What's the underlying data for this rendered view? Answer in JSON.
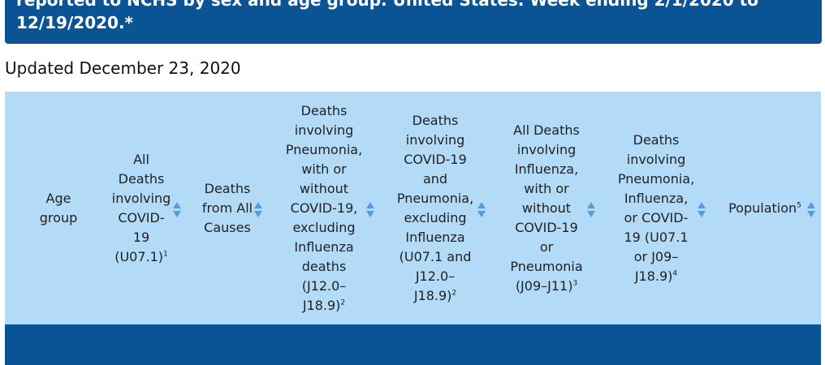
{
  "title": "reported to NCHS by sex and age group. United States. Week ending 2/1/2020 to 12/19/2020.*",
  "updated": "Updated December 23, 2020",
  "columns": [
    {
      "label": "Age group",
      "sup": ""
    },
    {
      "label": "All Deaths involving COVID-19 (U07.1)",
      "sup": "1"
    },
    {
      "label": "Deaths from All Causes",
      "sup": ""
    },
    {
      "label": "Deaths involving Pneumonia, with or without COVID-19, excluding Influenza deaths (J12.0–J18.9)",
      "sup": "2"
    },
    {
      "label": "Deaths involving COVID-19 and Pneumonia, excluding Influenza (U07.1 and J12.0–J18.9)",
      "sup": "2"
    },
    {
      "label": "All Deaths involving Influenza, with or without COVID-19 or Pneumonia (J09–J11)",
      "sup": "3"
    },
    {
      "label": "Deaths involving Pneumonia, Influenza, or COVID-19 (U07.1 or J09–J18.9)",
      "sup": "4"
    },
    {
      "label": "Population",
      "sup": "5"
    }
  ],
  "sort_icon": "sort-up-down-icon",
  "colors": {
    "banner": "#0a5394",
    "header_bg": "#b3daf7",
    "sort": "#5b9bd5"
  }
}
